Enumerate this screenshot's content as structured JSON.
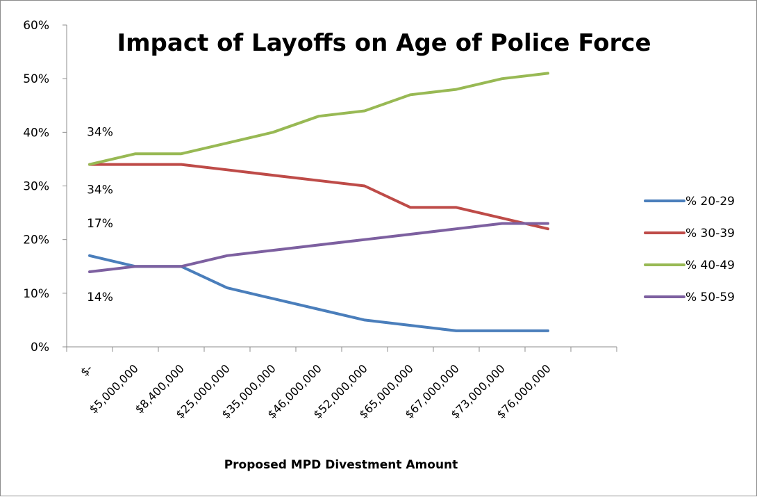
{
  "chart_data": {
    "type": "line",
    "title": "Impact of Layoffs on Age of Police Force",
    "xlabel": "Proposed MPD Divestment Amount",
    "ylabel": "",
    "ylim": [
      0,
      0.6
    ],
    "y_ticks": [
      0,
      0.1,
      0.2,
      0.3,
      0.4,
      0.5,
      0.6
    ],
    "y_tick_labels": [
      "0%",
      "10%",
      "20%",
      "30%",
      "40%",
      "50%",
      "60%"
    ],
    "categories": [
      "$-",
      "$5,000,000",
      "$8,400,000",
      "$25,000,000",
      "$35,000,000",
      "$46,000,000",
      "$52,000,000",
      "$65,000,000",
      "$67,000,000",
      "$73,000,000",
      "$76,000,000"
    ],
    "grid": false,
    "legend_position": "right",
    "series": [
      {
        "name": "% 20-29",
        "color": "#4a7ebb",
        "values": [
          0.17,
          0.15,
          0.15,
          0.11,
          0.09,
          0.07,
          0.05,
          0.04,
          0.03,
          0.03,
          0.03
        ]
      },
      {
        "name": "% 30-39",
        "color": "#be4b48",
        "values": [
          0.34,
          0.34,
          0.34,
          0.33,
          0.32,
          0.31,
          0.3,
          0.26,
          0.26,
          0.24,
          0.22
        ]
      },
      {
        "name": "% 40-49",
        "color": "#98b954",
        "values": [
          0.34,
          0.36,
          0.36,
          0.38,
          0.4,
          0.43,
          0.44,
          0.47,
          0.48,
          0.5,
          0.51
        ]
      },
      {
        "name": "% 50-59",
        "color": "#7d60a0",
        "values": [
          0.14,
          0.15,
          0.15,
          0.17,
          0.18,
          0.19,
          0.2,
          0.21,
          0.22,
          0.23,
          0.23
        ]
      }
    ],
    "data_labels": [
      {
        "series": "% 40-49",
        "index": 0,
        "text": "34%",
        "placement": "above"
      },
      {
        "series": "% 30-39",
        "index": 0,
        "text": "34%",
        "placement": "below"
      },
      {
        "series": "% 20-29",
        "index": 0,
        "text": "17%",
        "placement": "above"
      },
      {
        "series": "% 50-59",
        "index": 0,
        "text": "14%",
        "placement": "below"
      }
    ]
  }
}
